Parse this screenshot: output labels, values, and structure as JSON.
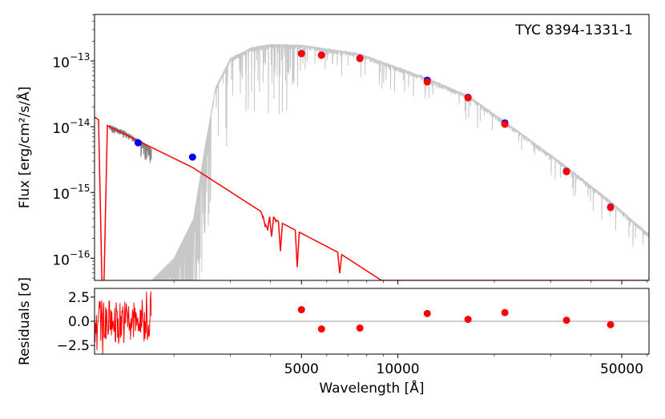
{
  "chart_data": [
    {
      "type": "scatter",
      "panel": "sed",
      "annotation": "TYC 8394-1331-1",
      "xlabel": "",
      "ylabel": "Flux [erg/cm²/s/Å]",
      "x_scale": "log",
      "y_scale": "log",
      "xlim": [
        1130,
        60800
      ],
      "ylim": [
        4.6e-17,
        5.1e-13
      ],
      "y_ticks": [
        {
          "value": 1e-13,
          "base": "10",
          "exp": "−13"
        },
        {
          "value": 1e-14,
          "base": "10",
          "exp": "−14"
        },
        {
          "value": 1e-15,
          "base": "10",
          "exp": "−15"
        },
        {
          "value": 1e-16,
          "base": "10",
          "exp": "−16"
        }
      ],
      "observed_points": {
        "color": "#0000ff",
        "x": [
          1546,
          2286,
          5000,
          5775,
          7610,
          12350,
          16560,
          21580,
          33610,
          46130
        ],
        "y": [
          5.7e-15,
          3.45e-15,
          1.3e-13,
          1.23e-13,
          1.1e-13,
          5.1e-14,
          2.8e-14,
          1.14e-14,
          2.1e-15,
          6e-16
        ]
      },
      "model_points": {
        "color": "#ff0000",
        "x": [
          5000,
          5775,
          7610,
          12350,
          16560,
          21580,
          33610,
          46130
        ],
        "y": [
          1.29e-13,
          1.22e-13,
          1.09e-13,
          4.8e-14,
          2.75e-14,
          1.09e-14,
          2.07e-15,
          5.9e-16
        ]
      },
      "cool_model_spectrum": {
        "color": "#c8c8c8",
        "x": [
          1700,
          2000,
          2300,
          2500,
          2700,
          3000,
          3500,
          4000,
          5000,
          7600,
          12350,
          16560,
          21580,
          33600,
          46000,
          60800
        ],
        "y": [
          4.6e-17,
          1e-16,
          4e-16,
          5e-15,
          4e-14,
          1.1e-13,
          1.6e-13,
          1.8e-13,
          1.75e-13,
          1.3e-13,
          5.5e-14,
          3e-14,
          1.2e-14,
          2.5e-15,
          7.5e-16,
          2.3e-16
        ]
      },
      "hot_model_spectrum": {
        "color": "#ff0000",
        "x": [
          1130,
          1256,
          2286,
          3900,
          6560,
          8890
        ],
        "y": [
          1.4e-14,
          1e-14,
          2.4e-15,
          4.5e-16,
          1.2e-16,
          4.6e-17
        ]
      },
      "uv_spectrum": {
        "color": "#808080",
        "x": [
          1256,
          1400,
          1550,
          1700
        ],
        "y": [
          1e-14,
          8e-15,
          6e-15,
          4.5e-15
        ]
      }
    },
    {
      "type": "scatter",
      "panel": "residuals",
      "xlabel": "Wavelength [Å]",
      "ylabel": "Residuals [σ]",
      "x_scale": "log",
      "xlim": [
        1130,
        60800
      ],
      "ylim": [
        -3.4,
        3.4
      ],
      "x_ticks": [
        "5000",
        "10000",
        "50000"
      ],
      "x_tick_values": [
        5000,
        10000,
        50000
      ],
      "y_ticks": [
        "2.5",
        "0.0",
        "−2.5"
      ],
      "y_tick_values": [
        2.5,
        0,
        -2.5
      ],
      "points": {
        "color": "#ff0000",
        "x": [
          5000,
          5775,
          7610,
          12350,
          16560,
          21580,
          33610,
          46130
        ],
        "y": [
          1.2,
          -0.8,
          -0.7,
          0.8,
          0.2,
          0.9,
          0.1,
          -0.35
        ]
      },
      "uv_residual_range": [
        1130,
        1700
      ]
    }
  ]
}
